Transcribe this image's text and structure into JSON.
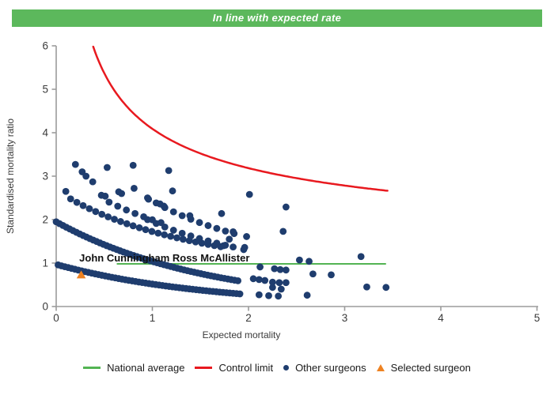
{
  "banner": {
    "label": "In line with expected rate",
    "bg": "#5cb85c"
  },
  "colors": {
    "navy": "#1f3d6e",
    "green_line": "#53b453",
    "red": "#e8191f",
    "orange": "#ee8222",
    "axis": "#9b9b9b",
    "text": "#3a3a3a"
  },
  "chart_data": {
    "type": "scatter",
    "title": "",
    "xlabel": "Expected mortality",
    "ylabel": "Standardised mortality ratio",
    "xlim": [
      0,
      5
    ],
    "ylim": [
      0,
      6
    ],
    "x_ticks": [
      0,
      1,
      2,
      3,
      4,
      5
    ],
    "y_ticks": [
      0,
      1,
      2,
      3,
      4,
      5,
      6
    ],
    "grid": false,
    "legend_position": "bottom",
    "annotation": {
      "label": "John Cunningham Ross McAllister",
      "x": 0.24,
      "y": 1.04
    },
    "national_average": {
      "y": 1.0,
      "x_start": 0.63,
      "x_end": 3.43
    },
    "control_limit": {
      "model": "y = 1 + k/sqrt(x)",
      "k": 3.09,
      "x_start": 0.385,
      "x_end": 3.45
    },
    "selected_surgeon": {
      "x": 0.26,
      "y": 0.73
    },
    "surgeon_bands": [
      {
        "name": "band-1",
        "model": "exp",
        "k": 0.97,
        "decay": 0.63,
        "x_start": 0.02,
        "x_end": 1.92,
        "step": 0.035
      },
      {
        "name": "band-2",
        "model": "exp",
        "k": 1.95,
        "decay": 0.63,
        "x_start": 0.0,
        "x_end": 1.9,
        "step": 0.035
      },
      {
        "name": "band-3",
        "model": "hyp",
        "a": 4.83,
        "b": 1.8,
        "x_start": 0.15,
        "x_end": 1.72,
        "step": 0.065
      },
      {
        "name": "band-3b",
        "model": "hyp",
        "a": 5.31,
        "b": 1.66,
        "x_start": 0.55,
        "x_end": 1.15,
        "step": 0.09
      },
      {
        "name": "band-3c",
        "model": "hyp",
        "a": 3.88,
        "b": 0.99,
        "x_start": 0.95,
        "x_end": 1.82,
        "step": 0.09
      },
      {
        "name": "band-4",
        "model": "hyp",
        "a": 4.6,
        "b": 0.89,
        "x_start": 0.95,
        "x_end": 1.85,
        "step": 0.09
      }
    ],
    "other_surgeons_points": [
      [
        0.1,
        2.65
      ],
      [
        0.2,
        3.27
      ],
      [
        0.27,
        3.1
      ],
      [
        0.31,
        3.0
      ],
      [
        0.38,
        2.87
      ],
      [
        0.47,
        2.56
      ],
      [
        0.51,
        2.54
      ],
      [
        0.53,
        3.2
      ],
      [
        0.65,
        2.64
      ],
      [
        0.68,
        2.6
      ],
      [
        0.8,
        3.25
      ],
      [
        0.81,
        2.72
      ],
      [
        0.96,
        2.47
      ],
      [
        1.08,
        2.36
      ],
      [
        1.12,
        2.31
      ],
      [
        1.17,
        3.13
      ],
      [
        1.21,
        2.66
      ],
      [
        1.39,
        2.09
      ],
      [
        1.72,
        2.14
      ],
      [
        2.01,
        2.58
      ],
      [
        2.39,
        2.29
      ],
      [
        1.84,
        1.72
      ],
      [
        1.98,
        1.61
      ],
      [
        1.8,
        1.55
      ],
      [
        1.74,
        1.4
      ],
      [
        1.84,
        1.37
      ],
      [
        1.96,
        1.36
      ],
      [
        1.95,
        1.31
      ],
      [
        2.36,
        1.73
      ],
      [
        2.53,
        1.07
      ],
      [
        2.63,
        1.04
      ],
      [
        3.17,
        1.15
      ],
      [
        2.12,
        0.91
      ],
      [
        2.27,
        0.87
      ],
      [
        2.33,
        0.85
      ],
      [
        2.39,
        0.84
      ],
      [
        2.67,
        0.75
      ],
      [
        2.86,
        0.73
      ],
      [
        2.05,
        0.64
      ],
      [
        2.11,
        0.62
      ],
      [
        2.17,
        0.6
      ],
      [
        2.25,
        0.56
      ],
      [
        2.32,
        0.55
      ],
      [
        2.39,
        0.55
      ],
      [
        2.25,
        0.44
      ],
      [
        2.34,
        0.4
      ],
      [
        2.11,
        0.27
      ],
      [
        2.21,
        0.25
      ],
      [
        2.31,
        0.24
      ],
      [
        2.61,
        0.26
      ],
      [
        3.23,
        0.45
      ],
      [
        3.43,
        0.44
      ]
    ]
  },
  "legend": {
    "items": [
      {
        "label": "National average",
        "marker": "line",
        "color": "#53b453"
      },
      {
        "label": "Control limit",
        "marker": "line",
        "color": "#e8191f"
      },
      {
        "label": "Other surgeons",
        "marker": "dot",
        "color": "#1f3d6e"
      },
      {
        "label": "Selected surgeon",
        "marker": "triangle",
        "color": "#ee8222"
      }
    ]
  }
}
